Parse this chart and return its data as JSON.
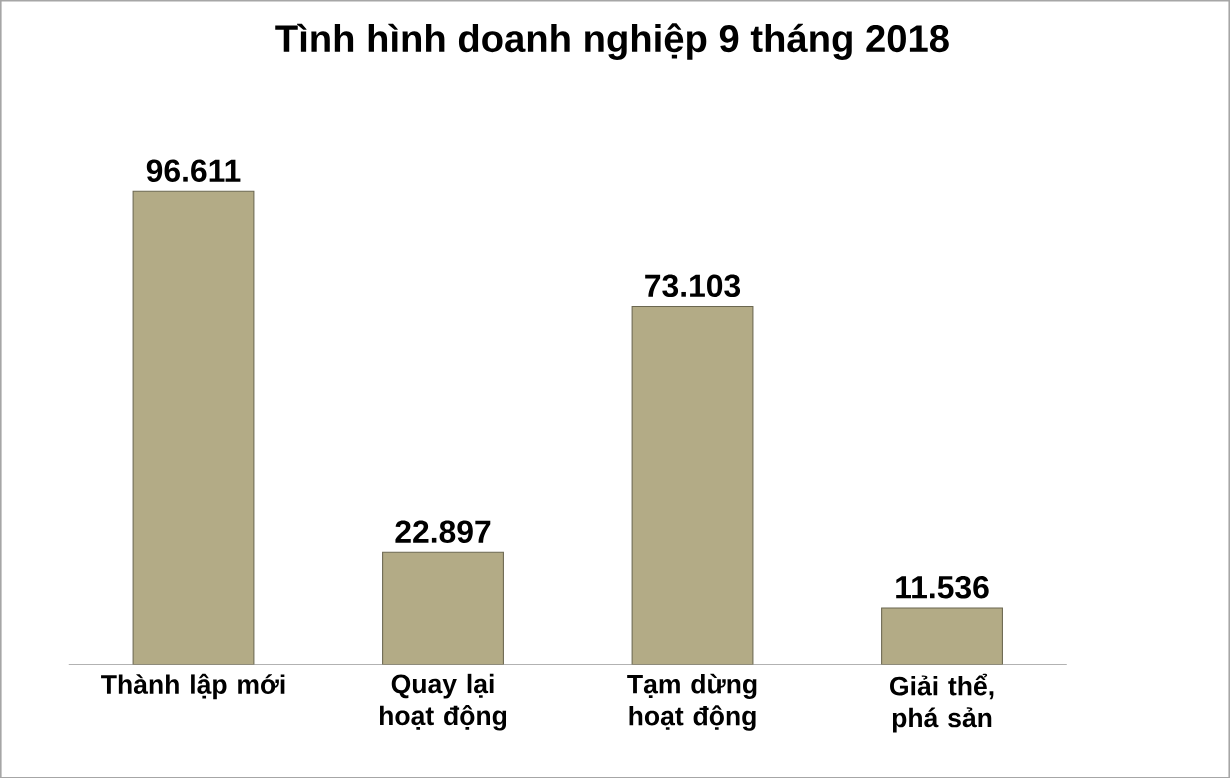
{
  "chart_data": {
    "type": "bar",
    "title": "Tình hình doanh nghiệp 9 tháng 2018",
    "categories": [
      "Thành lập mới",
      "Quay lại hoạt động",
      "Tạm dừng hoạt động",
      "Giải thể, phá sản"
    ],
    "values": [
      96611,
      22897,
      73103,
      11536
    ],
    "value_labels": [
      "96.611",
      "22.897",
      "73.103",
      "11.536"
    ],
    "color": "#b3ab86"
  }
}
